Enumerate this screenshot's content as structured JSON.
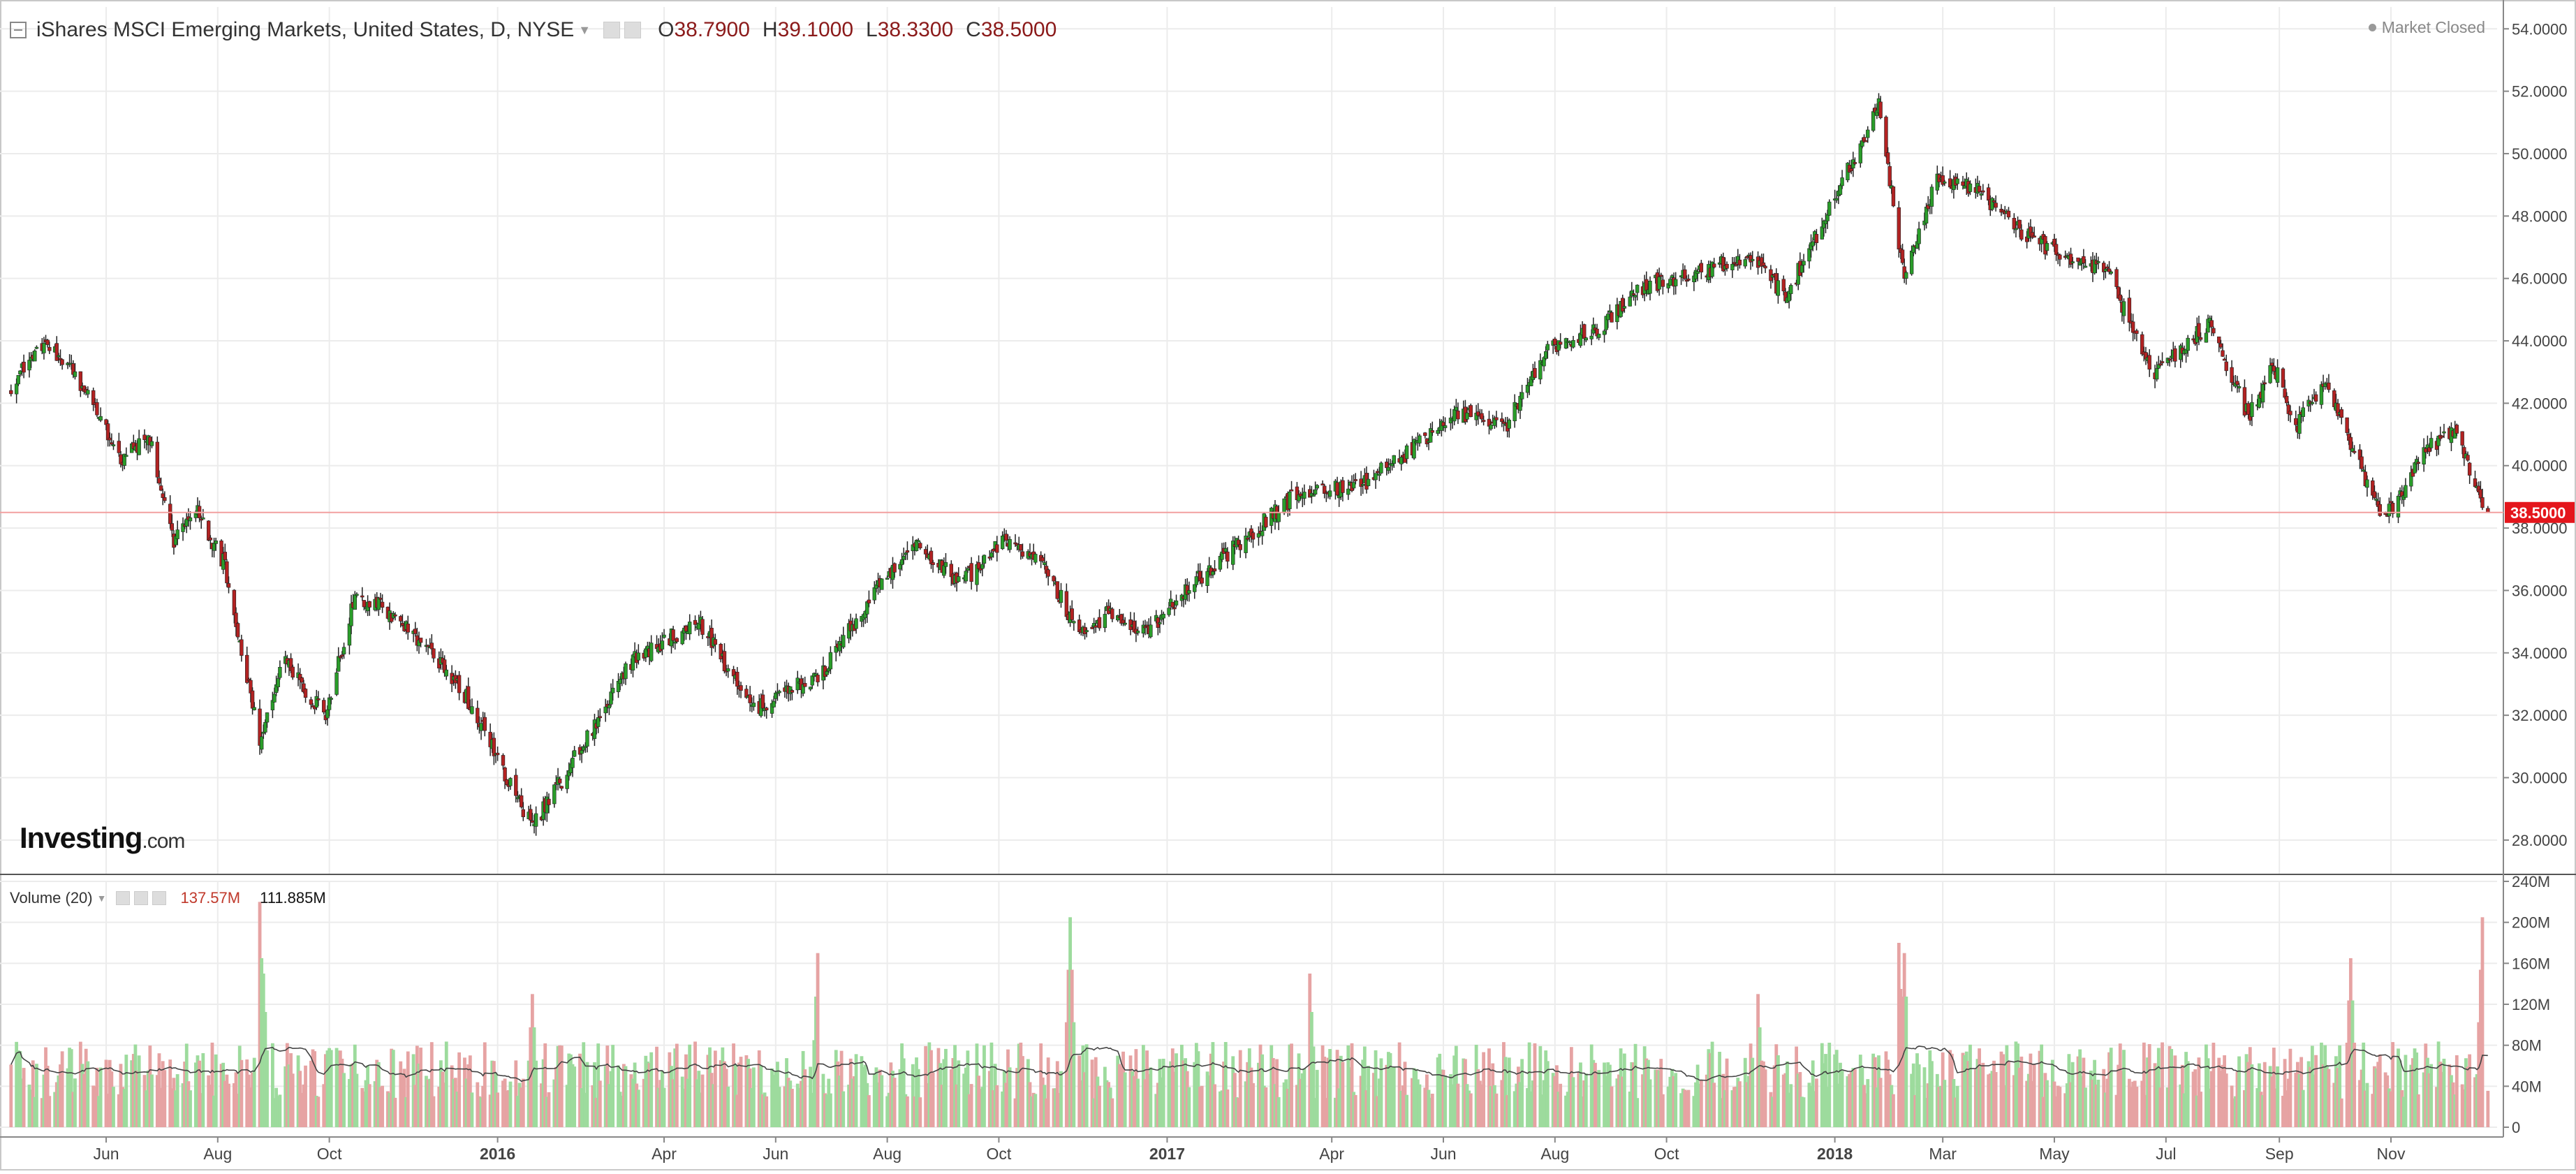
{
  "header": {
    "title": "iShares MSCI Emerging Markets, United States, D, NYSE",
    "ohlc": [
      {
        "key": "O",
        "value": "38.7900"
      },
      {
        "key": "H",
        "value": "39.1000"
      },
      {
        "key": "L",
        "value": "38.3300"
      },
      {
        "key": "C",
        "value": "38.5000"
      }
    ]
  },
  "status": "Market Closed",
  "logo": {
    "brand": "Investing",
    "domain": ".com"
  },
  "volume_header": {
    "label": "Volume (20)",
    "value1": "137.57M",
    "value2": "111.885M"
  },
  "colors": {
    "up": "#2a9d2a",
    "down": "#b22222",
    "vol_up": "#9ddb9d",
    "vol_down": "#e6a3a3",
    "price_line": "#f2a0a0",
    "price_badge": "#e4161c",
    "ma_line": "#444444",
    "grid": "#ececec"
  },
  "chart_data": [
    {
      "type": "candlestick",
      "title": "iShares MSCI Emerging Markets, United States, D, NYSE",
      "ylim": [
        26.9,
        54.7
      ],
      "y_ticks": [
        "28.0000",
        "30.0000",
        "32.0000",
        "34.0000",
        "36.0000",
        "38.0000",
        "40.0000",
        "42.0000",
        "44.0000",
        "46.0000",
        "48.0000",
        "50.0000",
        "52.0000",
        "54.0000"
      ],
      "x_ticks": [
        {
          "date": "2015-06-01",
          "label": "Jun",
          "bold": false
        },
        {
          "date": "2015-08-01",
          "label": "Aug",
          "bold": false
        },
        {
          "date": "2015-10-01",
          "label": "Oct",
          "bold": false
        },
        {
          "date": "2016-01-01",
          "label": "2016",
          "bold": true
        },
        {
          "date": "2016-04-01",
          "label": "Apr",
          "bold": false
        },
        {
          "date": "2016-06-01",
          "label": "Jun",
          "bold": false
        },
        {
          "date": "2016-08-01",
          "label": "Aug",
          "bold": false
        },
        {
          "date": "2016-10-01",
          "label": "Oct",
          "bold": false
        },
        {
          "date": "2017-01-01",
          "label": "2017",
          "bold": true
        },
        {
          "date": "2017-04-01",
          "label": "Apr",
          "bold": false
        },
        {
          "date": "2017-06-01",
          "label": "Jun",
          "bold": false
        },
        {
          "date": "2017-08-01",
          "label": "Aug",
          "bold": false
        },
        {
          "date": "2017-10-01",
          "label": "Oct",
          "bold": false
        },
        {
          "date": "2018-01-01",
          "label": "2018",
          "bold": true
        },
        {
          "date": "2018-03-01",
          "label": "Mar",
          "bold": false
        },
        {
          "date": "2018-05-01",
          "label": "May",
          "bold": false
        },
        {
          "date": "2018-07-01",
          "label": "Jul",
          "bold": false
        },
        {
          "date": "2018-09-01",
          "label": "Sep",
          "bold": false
        },
        {
          "date": "2018-11-01",
          "label": "Nov",
          "bold": false
        }
      ],
      "last_price": "38.5000",
      "last_value": 38.5,
      "close_path": [
        {
          "date": "2015-04-10",
          "close": 42.5
        },
        {
          "date": "2015-04-28",
          "close": 44.0
        },
        {
          "date": "2015-05-15",
          "close": 42.9
        },
        {
          "date": "2015-06-10",
          "close": 40.2
        },
        {
          "date": "2015-06-25",
          "close": 40.9
        },
        {
          "date": "2015-07-08",
          "close": 37.5
        },
        {
          "date": "2015-07-20",
          "close": 38.6
        },
        {
          "date": "2015-08-05",
          "close": 36.8
        },
        {
          "date": "2015-08-24",
          "close": 31.2
        },
        {
          "date": "2015-09-05",
          "close": 33.8
        },
        {
          "date": "2015-09-29",
          "close": 32.0
        },
        {
          "date": "2015-10-15",
          "close": 35.8
        },
        {
          "date": "2015-11-01",
          "close": 35.4
        },
        {
          "date": "2015-11-20",
          "close": 34.4
        },
        {
          "date": "2015-12-15",
          "close": 32.6
        },
        {
          "date": "2016-01-20",
          "close": 28.4
        },
        {
          "date": "2016-02-12",
          "close": 30.6
        },
        {
          "date": "2016-03-15",
          "close": 33.8
        },
        {
          "date": "2016-04-20",
          "close": 35.0
        },
        {
          "date": "2016-05-20",
          "close": 32.2
        },
        {
          "date": "2016-06-27",
          "close": 33.4
        },
        {
          "date": "2016-07-20",
          "close": 35.5
        },
        {
          "date": "2016-08-15",
          "close": 37.6
        },
        {
          "date": "2016-09-10",
          "close": 36.2
        },
        {
          "date": "2016-10-05",
          "close": 37.7
        },
        {
          "date": "2016-10-25",
          "close": 36.9
        },
        {
          "date": "2016-11-15",
          "close": 34.5
        },
        {
          "date": "2016-12-01",
          "close": 35.4
        },
        {
          "date": "2016-12-20",
          "close": 34.6
        },
        {
          "date": "2017-01-15",
          "close": 36.2
        },
        {
          "date": "2017-02-15",
          "close": 37.8
        },
        {
          "date": "2017-03-15",
          "close": 39.2
        },
        {
          "date": "2017-04-15",
          "close": 39.3
        },
        {
          "date": "2017-05-10",
          "close": 40.3
        },
        {
          "date": "2017-06-10",
          "close": 41.7
        },
        {
          "date": "2017-07-05",
          "close": 41.2
        },
        {
          "date": "2017-07-28",
          "close": 43.8
        },
        {
          "date": "2017-08-25",
          "close": 44.4
        },
        {
          "date": "2017-09-20",
          "close": 45.8
        },
        {
          "date": "2017-10-20",
          "close": 46.2
        },
        {
          "date": "2017-11-15",
          "close": 46.8
        },
        {
          "date": "2017-12-05",
          "close": 45.4
        },
        {
          "date": "2017-12-28",
          "close": 48.1
        },
        {
          "date": "2018-01-25",
          "close": 51.5
        },
        {
          "date": "2018-02-08",
          "close": 46.0
        },
        {
          "date": "2018-02-26",
          "close": 49.2
        },
        {
          "date": "2018-03-20",
          "close": 48.9
        },
        {
          "date": "2018-04-10",
          "close": 47.6
        },
        {
          "date": "2018-05-05",
          "close": 46.7
        },
        {
          "date": "2018-05-30",
          "close": 46.2
        },
        {
          "date": "2018-06-25",
          "close": 42.9
        },
        {
          "date": "2018-07-25",
          "close": 44.6
        },
        {
          "date": "2018-08-15",
          "close": 41.6
        },
        {
          "date": "2018-08-29",
          "close": 43.2
        },
        {
          "date": "2018-09-10",
          "close": 41.2
        },
        {
          "date": "2018-09-25",
          "close": 42.7
        },
        {
          "date": "2018-10-28",
          "close": 38.2
        },
        {
          "date": "2018-11-20",
          "close": 40.5
        },
        {
          "date": "2018-12-05",
          "close": 41.2
        },
        {
          "date": "2018-12-24",
          "close": 38.5
        }
      ]
    },
    {
      "type": "bar",
      "title": "Volume (20)",
      "ylim": [
        0,
        240
      ],
      "y_ticks": [
        "0",
        "40M",
        "80M",
        "120M",
        "160M",
        "200M",
        "240M"
      ],
      "series": [
        {
          "name": "Volume",
          "baseline_millions": 62
        },
        {
          "name": "MA 20",
          "baseline_millions": 62
        }
      ],
      "spikes": [
        {
          "date": "2015-08-24",
          "millions": 220
        },
        {
          "date": "2015-08-26",
          "millions": 150
        },
        {
          "date": "2016-01-20",
          "millions": 130
        },
        {
          "date": "2016-06-24",
          "millions": 170
        },
        {
          "date": "2016-11-09",
          "millions": 205
        },
        {
          "date": "2017-03-20",
          "millions": 150
        },
        {
          "date": "2017-11-20",
          "millions": 130
        },
        {
          "date": "2018-02-05",
          "millions": 180
        },
        {
          "date": "2018-02-08",
          "millions": 170
        },
        {
          "date": "2018-10-10",
          "millions": 165
        },
        {
          "date": "2018-12-21",
          "millions": 205
        }
      ]
    }
  ]
}
